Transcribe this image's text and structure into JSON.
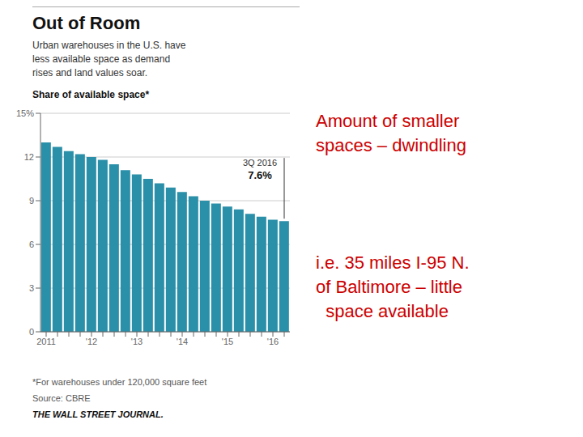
{
  "chart_data": {
    "type": "bar",
    "title": "Out of Room",
    "subtitle": "Urban warehouses in the U.S. have\nless available space as demand\nrises and land values soar.",
    "ylabel": "Share of available space*",
    "categories": [
      "2011",
      null,
      null,
      null,
      "'12",
      null,
      null,
      null,
      "'13",
      null,
      null,
      null,
      "'14",
      null,
      null,
      null,
      "'15",
      null,
      null,
      null,
      "'16",
      null
    ],
    "values": [
      13.0,
      12.7,
      12.4,
      12.2,
      12.0,
      11.8,
      11.5,
      11.1,
      10.8,
      10.5,
      10.2,
      9.9,
      9.6,
      9.3,
      9.0,
      8.8,
      8.6,
      8.4,
      8.1,
      7.9,
      7.7,
      7.6
    ],
    "color": "#2a8fa8",
    "ylim": [
      0,
      15
    ],
    "yticks": [
      0,
      3,
      6,
      9,
      12,
      {
        "value": 15,
        "label": "15%"
      }
    ],
    "grid": true,
    "annotations": [
      {
        "label": "3Q 2016",
        "value": 7.6,
        "value_label": "7.6%"
      }
    ],
    "notes": [
      "*For warehouses under 120,000 square feet",
      "Source: CBRE",
      "THE WALL STREET JOURNAL."
    ],
    "side_notes": [
      {
        "text": "Amount of smaller\nspaces – dwindling",
        "color": "#cc0000"
      },
      {
        "text": "i.e. 35 miles I-95 N.\nof Baltimore – little\n  space available",
        "color": "#cc0000"
      }
    ]
  }
}
